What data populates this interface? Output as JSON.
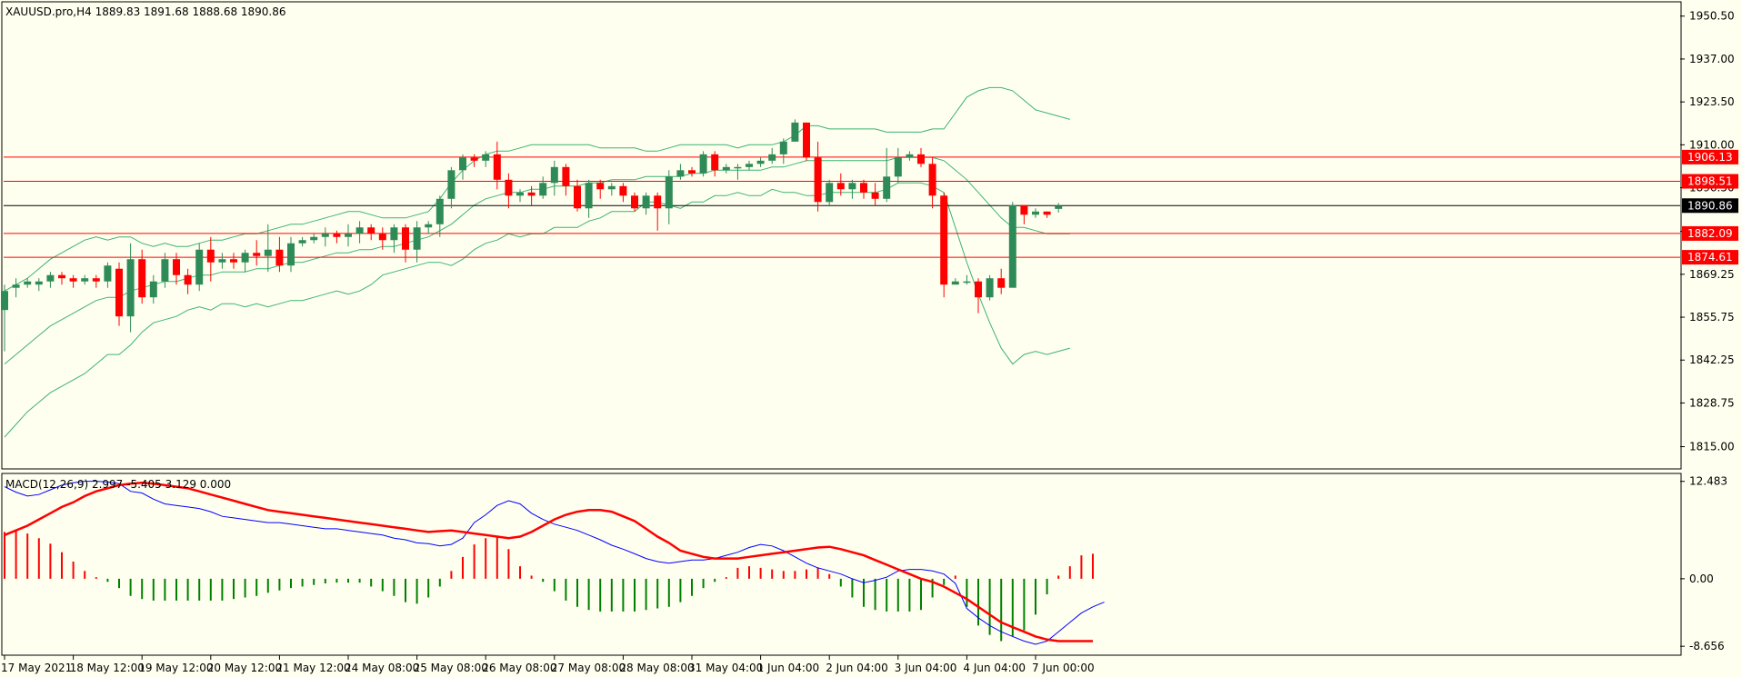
{
  "chart_data": [
    {
      "type": "candlestick",
      "title": "XAUUSD.pro,H4  1889.83 1891.68 1888.68 1890.86",
      "ylim": [
        1808.0,
        1955.0
      ],
      "y_ticks": [
        "1950.50",
        "1937.00",
        "1923.50",
        "1910.00",
        "1896.50",
        "1882.75",
        "1869.25",
        "1855.75",
        "1842.25",
        "1828.75",
        "1815.00"
      ],
      "x_ticks": [
        "17 May 2021",
        "18 May 12:00",
        "19 May 12:00",
        "20 May 12:00",
        "21 May 12:00",
        "24 May 08:00",
        "25 May 08:00",
        "26 May 08:00",
        "27 May 08:00",
        "28 May 08:00",
        "31 May 04:00",
        "1 Jun 04:00",
        "2 Jun 04:00",
        "3 Jun 04:00",
        "4 Jun 04:00",
        "7 Jun 00:00"
      ],
      "candles": [
        [
          1858,
          1864,
          1845,
          1866
        ],
        [
          1865,
          1866,
          1862,
          1868
        ],
        [
          1866,
          1867,
          1865,
          1868
        ],
        [
          1866,
          1867,
          1864,
          1868
        ],
        [
          1867,
          1869,
          1865,
          1870
        ],
        [
          1869,
          1868,
          1866,
          1870
        ],
        [
          1868,
          1867,
          1865,
          1869
        ],
        [
          1867,
          1868,
          1866,
          1869
        ],
        [
          1868,
          1867,
          1865,
          1869
        ],
        [
          1867,
          1872,
          1865,
          1873
        ],
        [
          1871,
          1856,
          1853,
          1873
        ],
        [
          1856,
          1874,
          1851,
          1879
        ],
        [
          1874,
          1862,
          1860,
          1877
        ],
        [
          1862,
          1867,
          1860,
          1869
        ],
        [
          1867,
          1874,
          1865,
          1876
        ],
        [
          1874,
          1869,
          1866,
          1876
        ],
        [
          1869,
          1866,
          1863,
          1871
        ],
        [
          1866,
          1877,
          1864,
          1879
        ],
        [
          1877,
          1873,
          1867,
          1881
        ],
        [
          1873,
          1874,
          1871,
          1876
        ],
        [
          1874,
          1873,
          1871,
          1876
        ],
        [
          1873,
          1876,
          1870,
          1877
        ],
        [
          1876,
          1875,
          1872,
          1880
        ],
        [
          1875,
          1877,
          1870,
          1885
        ],
        [
          1877,
          1872,
          1870,
          1881
        ],
        [
          1872,
          1879,
          1870,
          1881
        ],
        [
          1879,
          1880,
          1878,
          1881
        ],
        [
          1880,
          1881,
          1879,
          1882
        ],
        [
          1881,
          1882,
          1878,
          1884
        ],
        [
          1882,
          1881,
          1879,
          1883
        ],
        [
          1881,
          1882,
          1878,
          1885
        ],
        [
          1882,
          1884,
          1879,
          1886
        ],
        [
          1884,
          1882,
          1880,
          1885
        ],
        [
          1882,
          1880,
          1877,
          1884
        ],
        [
          1880,
          1884,
          1876,
          1885
        ],
        [
          1884,
          1877,
          1873,
          1885
        ],
        [
          1877,
          1884,
          1873,
          1886
        ],
        [
          1884,
          1885,
          1882,
          1886
        ],
        [
          1885,
          1893,
          1881,
          1894
        ],
        [
          1893,
          1902,
          1890,
          1903
        ],
        [
          1902,
          1906,
          1899,
          1907
        ],
        [
          1906,
          1905,
          1903,
          1907
        ],
        [
          1905,
          1907,
          1903,
          1908
        ],
        [
          1907,
          1899,
          1896,
          1911
        ],
        [
          1899,
          1894,
          1890,
          1901
        ],
        [
          1894,
          1895,
          1892,
          1896
        ],
        [
          1895,
          1894,
          1891,
          1897
        ],
        [
          1894,
          1898,
          1893,
          1900
        ],
        [
          1898,
          1903,
          1894,
          1905
        ],
        [
          1903,
          1897,
          1894,
          1904
        ],
        [
          1897,
          1890,
          1889,
          1899
        ],
        [
          1890,
          1898,
          1887,
          1899
        ],
        [
          1898,
          1896,
          1893,
          1899
        ],
        [
          1896,
          1897,
          1894,
          1898
        ],
        [
          1897,
          1894,
          1892,
          1898
        ],
        [
          1894,
          1890,
          1889,
          1895
        ],
        [
          1890,
          1894,
          1888,
          1895
        ],
        [
          1894,
          1890,
          1883,
          1895
        ],
        [
          1890,
          1900,
          1885,
          1902
        ],
        [
          1900,
          1902,
          1899,
          1904
        ],
        [
          1902,
          1901,
          1900,
          1903
        ],
        [
          1901,
          1907,
          1900,
          1908
        ],
        [
          1907,
          1902,
          1900,
          1908
        ],
        [
          1902,
          1903,
          1901,
          1904
        ],
        [
          1903,
          1903,
          1899,
          1904
        ],
        [
          1903,
          1904,
          1902,
          1905
        ],
        [
          1904,
          1905,
          1903,
          1906
        ],
        [
          1905,
          1907,
          1904,
          1909
        ],
        [
          1907,
          1911,
          1904,
          1912
        ],
        [
          1911,
          1917,
          1911,
          1918
        ],
        [
          1917,
          1906,
          1905,
          1917
        ],
        [
          1906,
          1892,
          1889,
          1911
        ],
        [
          1892,
          1898,
          1891,
          1899
        ],
        [
          1898,
          1896,
          1894,
          1901
        ],
        [
          1896,
          1898,
          1893,
          1899
        ],
        [
          1898,
          1895,
          1893,
          1899
        ],
        [
          1895,
          1893,
          1891,
          1898
        ],
        [
          1893,
          1900,
          1892,
          1909
        ],
        [
          1900,
          1906,
          1898,
          1909
        ],
        [
          1906,
          1907,
          1905,
          1908
        ],
        [
          1907,
          1904,
          1903,
          1909
        ],
        [
          1904,
          1894,
          1890,
          1906
        ],
        [
          1894,
          1866,
          1862,
          1895
        ],
        [
          1866,
          1867,
          1866,
          1868
        ],
        [
          1867,
          1867,
          1866,
          1869
        ],
        [
          1867,
          1862,
          1857,
          1868
        ],
        [
          1862,
          1868,
          1861,
          1869
        ],
        [
          1868,
          1865,
          1863,
          1871
        ],
        [
          1865,
          1891,
          1866,
          1892
        ],
        [
          1891,
          1888,
          1885,
          1891
        ],
        [
          1888,
          1889,
          1887,
          1890
        ],
        [
          1889,
          1888,
          1887,
          1889
        ],
        [
          1889.83,
          1890.86,
          1888.68,
          1891.68
        ]
      ],
      "bollinger_upper": [
        1864,
        1866,
        1868,
        1871,
        1874,
        1876,
        1878,
        1880,
        1881,
        1880,
        1881,
        1881,
        1879,
        1878,
        1879,
        1878,
        1878,
        1879,
        1880,
        1880,
        1881,
        1882,
        1882,
        1883,
        1884,
        1885,
        1885,
        1886,
        1887,
        1888,
        1889,
        1889,
        1888,
        1887,
        1887,
        1887,
        1888,
        1889,
        1893,
        1898,
        1902,
        1905,
        1907,
        1908,
        1908,
        1909,
        1910,
        1910,
        1910,
        1910,
        1910,
        1910,
        1909,
        1909,
        1909,
        1909,
        1908,
        1908,
        1909,
        1910,
        1910,
        1910,
        1910,
        1910,
        1909,
        1910,
        1910,
        1910,
        1911,
        1913,
        1916,
        1916,
        1915,
        1915,
        1915,
        1915,
        1915,
        1914,
        1914,
        1914,
        1914,
        1915,
        1915,
        1920,
        1925,
        1927,
        1928,
        1928,
        1927,
        1924,
        1921,
        1920,
        1919,
        1918
      ],
      "bollinger_middle": [
        1841,
        1844,
        1847,
        1850,
        1853,
        1855,
        1857,
        1859,
        1861,
        1862,
        1862,
        1864,
        1865,
        1866,
        1867,
        1867,
        1868,
        1869,
        1869,
        1870,
        1870,
        1870,
        1871,
        1871,
        1872,
        1873,
        1873,
        1874,
        1875,
        1876,
        1876,
        1877,
        1877,
        1878,
        1878,
        1879,
        1880,
        1881,
        1883,
        1885,
        1888,
        1891,
        1893,
        1894,
        1895,
        1895,
        1896,
        1896,
        1897,
        1897,
        1897,
        1898,
        1898,
        1899,
        1899,
        1899,
        1900,
        1900,
        1900,
        1900,
        1901,
        1901,
        1902,
        1902,
        1902,
        1902,
        1902,
        1903,
        1903,
        1904,
        1905,
        1905,
        1905,
        1905,
        1905,
        1905,
        1905,
        1905,
        1906,
        1906,
        1906,
        1906,
        1905,
        1902,
        1899,
        1895,
        1891,
        1887,
        1884,
        1884,
        1883,
        1882,
        1882,
        1882
      ],
      "bollinger_lower": [
        1818,
        1822,
        1826,
        1829,
        1832,
        1834,
        1836,
        1838,
        1841,
        1844,
        1844,
        1847,
        1851,
        1854,
        1855,
        1856,
        1858,
        1859,
        1858,
        1860,
        1860,
        1859,
        1860,
        1859,
        1860,
        1861,
        1861,
        1862,
        1863,
        1864,
        1863,
        1864,
        1866,
        1869,
        1870,
        1871,
        1872,
        1873,
        1873,
        1872,
        1874,
        1877,
        1879,
        1880,
        1882,
        1881,
        1882,
        1882,
        1884,
        1884,
        1884,
        1886,
        1887,
        1889,
        1889,
        1889,
        1892,
        1892,
        1891,
        1890,
        1892,
        1892,
        1894,
        1894,
        1895,
        1894,
        1894,
        1896,
        1895,
        1895,
        1894,
        1894,
        1895,
        1895,
        1895,
        1895,
        1895,
        1896,
        1898,
        1898,
        1898,
        1897,
        1895,
        1884,
        1873,
        1863,
        1854,
        1846,
        1841,
        1844,
        1845,
        1844,
        1845,
        1846
      ],
      "horizontal_levels": [
        {
          "label": "1906.13",
          "value": 1906.13,
          "color": "#FF0000"
        },
        {
          "label": "1898.51",
          "value": 1898.51,
          "color": "#FF0000"
        },
        {
          "label": "1890.86",
          "value": 1890.86,
          "color": "#000000"
        },
        {
          "label": "1882.09",
          "value": 1882.09,
          "color": "#FF0000"
        },
        {
          "label": "1874.61",
          "value": 1874.61,
          "color": "#FF0000"
        }
      ],
      "colors": {
        "bull": "#2E8B57",
        "bear": "#FF0000",
        "band": "#3CB371",
        "background": "#FFFFF0",
        "grid_axis": "#000000"
      }
    },
    {
      "type": "macd",
      "title": "MACD(12,26,9)  2.997 -5.405 3.129 0.000",
      "ylim": [
        -9.8,
        13.5
      ],
      "y_ticks": [
        "12.483",
        "0.00",
        "-8.656"
      ],
      "histogram": [
        6,
        6.2,
        5.8,
        5.2,
        4.5,
        3.4,
        2.2,
        1.0,
        0.2,
        -0.4,
        -1.2,
        -2.2,
        -2.6,
        -2.8,
        -2.8,
        -2.8,
        -2.8,
        -2.8,
        -2.8,
        -2.8,
        -2.6,
        -2.4,
        -2.2,
        -1.8,
        -1.5,
        -1.2,
        -1.0,
        -0.8,
        -0.6,
        -0.5,
        -0.5,
        -0.5,
        -1.0,
        -1.6,
        -2.2,
        -3.0,
        -3.2,
        -2.4,
        -1.0,
        1.0,
        2.8,
        4.4,
        5.2,
        5.4,
        3.8,
        1.6,
        0.4,
        -0.4,
        -1.6,
        -2.8,
        -3.6,
        -4.0,
        -4.2,
        -4.2,
        -4.2,
        -4.2,
        -4.0,
        -3.8,
        -3.6,
        -3.0,
        -2.2,
        -1.2,
        -0.4,
        0.2,
        1.4,
        1.6,
        1.4,
        1.2,
        1.0,
        1.0,
        1.2,
        1.4,
        0.6,
        -1.0,
        -2.4,
        -3.6,
        -4.0,
        -4.2,
        -4.2,
        -4.2,
        -4.0,
        -2.4,
        -0.8,
        0.4,
        -3.6,
        -6.0,
        -7.2,
        -8.0,
        -7.4,
        -6.6,
        -4.6,
        -2.0,
        0.4,
        1.6,
        3.0,
        3.2
      ],
      "macd_line": [
        11.8,
        11.1,
        10.6,
        10.8,
        11.4,
        12.0,
        12.3,
        12.5,
        12.5,
        12.4,
        12.2,
        11.2,
        11.0,
        10.2,
        9.6,
        9.4,
        9.2,
        9.0,
        8.6,
        8.0,
        7.8,
        7.6,
        7.4,
        7.2,
        7.2,
        7.0,
        6.8,
        6.6,
        6.4,
        6.4,
        6.2,
        6.0,
        5.8,
        5.6,
        5.2,
        5.0,
        4.6,
        4.5,
        4.2,
        4.4,
        5.2,
        7.2,
        8.2,
        9.4,
        10.0,
        9.6,
        8.4,
        7.6,
        7.0,
        6.6,
        6.2,
        5.6,
        5.0,
        4.3,
        3.8,
        3.2,
        2.6,
        2.2,
        2.0,
        2.2,
        2.4,
        2.4,
        2.6,
        3.0,
        3.4,
        4.0,
        4.4,
        4.2,
        3.6,
        2.8,
        2.0,
        1.4,
        1.0,
        0.6,
        0.0,
        -0.5,
        -0.2,
        0.2,
        1.0,
        1.2,
        1.2,
        1.0,
        0.6,
        -0.6,
        -3.8,
        -5.0,
        -6.0,
        -6.8,
        -7.4,
        -8.0,
        -8.4,
        -8.0,
        -6.8,
        -5.6,
        -4.4,
        -3.6,
        -3.0
      ],
      "signal_line": [
        5.6,
        6.2,
        6.8,
        7.6,
        8.4,
        9.2,
        9.8,
        10.6,
        11.2,
        11.6,
        12.0,
        12.2,
        12.3,
        12.2,
        12.0,
        11.8,
        11.6,
        11.2,
        10.8,
        10.4,
        10.0,
        9.6,
        9.2,
        8.8,
        8.6,
        8.4,
        8.2,
        8.0,
        7.8,
        7.6,
        7.4,
        7.2,
        7.0,
        6.8,
        6.6,
        6.4,
        6.2,
        6.0,
        6.1,
        6.2,
        6.0,
        5.8,
        5.6,
        5.4,
        5.2,
        5.4,
        6.0,
        6.8,
        7.6,
        8.2,
        8.6,
        8.8,
        8.8,
        8.6,
        8.0,
        7.4,
        6.4,
        5.4,
        4.6,
        3.6,
        3.2,
        2.8,
        2.6,
        2.6,
        2.6,
        2.8,
        3.0,
        3.2,
        3.4,
        3.6,
        3.8,
        4.0,
        4.1,
        3.8,
        3.4,
        3.0,
        2.4,
        1.8,
        1.2,
        0.6,
        0.0,
        -0.4,
        -1.0,
        -1.8,
        -2.6,
        -3.6,
        -4.6,
        -5.6,
        -6.2,
        -6.8,
        -7.4,
        -7.8,
        -8.0,
        -8.0,
        -8.0,
        -8.0
      ],
      "colors": {
        "pos": "#FF0000",
        "neg": "#008000",
        "macd": "#0000FF",
        "signal": "#FF0000"
      }
    }
  ]
}
